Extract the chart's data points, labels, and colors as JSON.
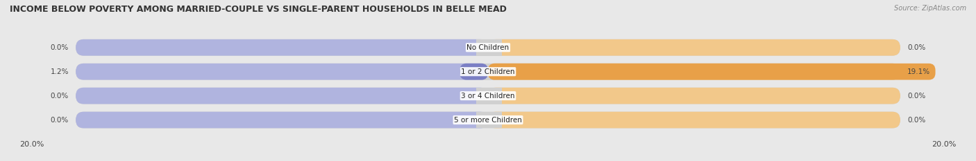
{
  "title": "INCOME BELOW POVERTY AMONG MARRIED-COUPLE VS SINGLE-PARENT HOUSEHOLDS IN BELLE MEAD",
  "source": "Source: ZipAtlas.com",
  "categories": [
    "No Children",
    "1 or 2 Children",
    "3 or 4 Children",
    "5 or more Children"
  ],
  "married_values": [
    0.0,
    1.2,
    0.0,
    0.0
  ],
  "single_values": [
    0.0,
    19.1,
    0.0,
    0.0
  ],
  "x_max": 20.0,
  "married_color": "#7b7fc4",
  "married_color_light": "#b0b4df",
  "single_color": "#e8a048",
  "single_color_light": "#f2c88a",
  "fig_bg_color": "#e8e8e8",
  "row_bg_color": "#d8d8d8",
  "title_fontsize": 9,
  "source_fontsize": 7,
  "label_fontsize": 7.5,
  "category_fontsize": 7.5,
  "axis_label_fontsize": 8,
  "figsize": [
    14.06,
    2.33
  ],
  "dpi": 100
}
